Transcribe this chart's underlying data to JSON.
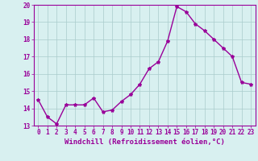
{
  "x": [
    0,
    1,
    2,
    3,
    4,
    5,
    6,
    7,
    8,
    9,
    10,
    11,
    12,
    13,
    14,
    15,
    16,
    17,
    18,
    19,
    20,
    21,
    22,
    23
  ],
  "y": [
    14.5,
    13.5,
    13.1,
    14.2,
    14.2,
    14.2,
    14.6,
    13.8,
    13.9,
    14.4,
    14.8,
    15.4,
    16.3,
    16.7,
    17.9,
    19.9,
    19.6,
    18.9,
    18.5,
    18.0,
    17.5,
    17.0,
    15.5,
    15.4
  ],
  "line_color": "#990099",
  "marker": "*",
  "marker_size": 3,
  "background_color": "#d8f0f0",
  "grid_color": "#aacccc",
  "xlabel": "Windchill (Refroidissement éolien,°C)",
  "ylabel": "",
  "xlim": [
    -0.5,
    23.5
  ],
  "ylim": [
    13.0,
    20.0
  ],
  "yticks": [
    13,
    14,
    15,
    16,
    17,
    18,
    19,
    20
  ],
  "xticks": [
    0,
    1,
    2,
    3,
    4,
    5,
    6,
    7,
    8,
    9,
    10,
    11,
    12,
    13,
    14,
    15,
    16,
    17,
    18,
    19,
    20,
    21,
    22,
    23
  ],
  "tick_color": "#990099",
  "tick_fontsize": 5.5,
  "xlabel_fontsize": 6.5,
  "line_width": 1.0
}
